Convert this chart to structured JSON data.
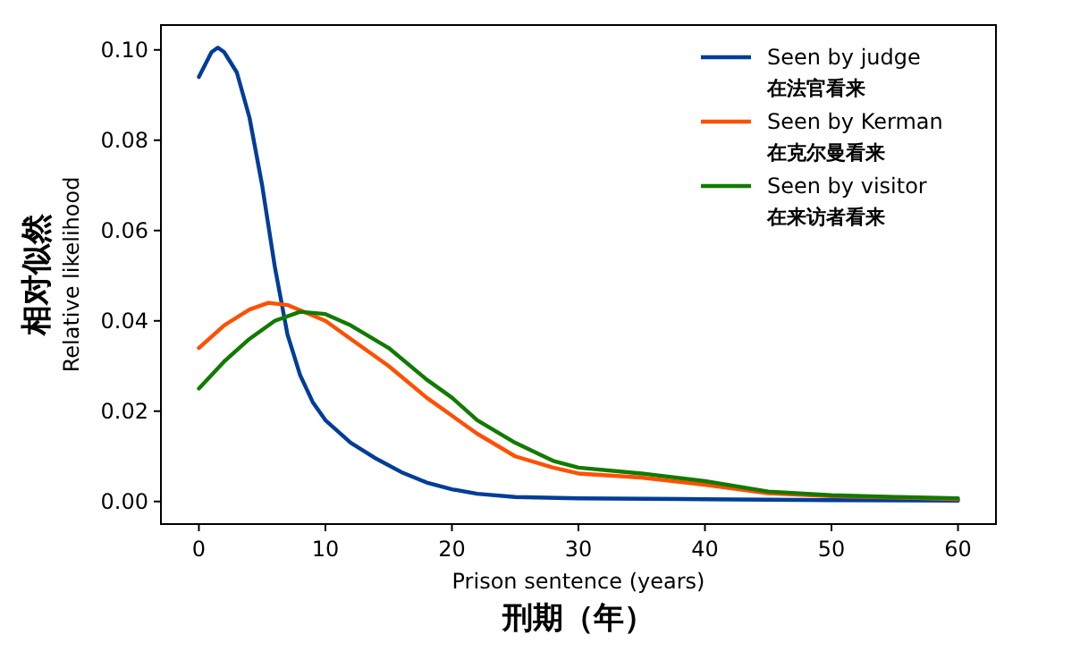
{
  "chart_data": {
    "type": "line",
    "xlabel": "Prison sentence (years)\n刑期（年）",
    "ylabel": "相对似然\nRelative likelihood",
    "xlim": [
      -3,
      63
    ],
    "ylim": [
      -0.005,
      0.1055
    ],
    "xticks": [
      0,
      10,
      20,
      30,
      40,
      50,
      60
    ],
    "yticks": [
      {
        "value": 0,
        "label": "0.00"
      },
      {
        "value": 0.02,
        "label": "0.02"
      },
      {
        "value": 0.04,
        "label": "0.04"
      },
      {
        "value": 0.06,
        "label": "0.06"
      },
      {
        "value": 0.08,
        "label": "0.08"
      },
      {
        "value": 0.1,
        "label": "0.10"
      }
    ],
    "grid": false,
    "legend": "top right",
    "marker": "none",
    "line_style": "solid",
    "series": [
      {
        "name": "Seen by judge\n在法官看来",
        "color": "#003d99",
        "x": [
          0,
          1,
          1.5,
          2,
          3,
          4,
          5,
          6,
          7,
          8,
          9,
          10,
          12,
          14,
          16,
          18,
          20,
          22,
          25,
          30,
          40,
          50,
          60
        ],
        "values": [
          0.094,
          0.0995,
          0.1005,
          0.0995,
          0.095,
          0.085,
          0.07,
          0.052,
          0.037,
          0.028,
          0.022,
          0.018,
          0.013,
          0.0095,
          0.0065,
          0.0042,
          0.0027,
          0.0017,
          0.001,
          0.0007,
          0.0005,
          0.0003,
          0.0002
        ]
      },
      {
        "name": "Seen by Kerman\n在克尔曼看来",
        "color": "#ff5000",
        "x": [
          0,
          2,
          4,
          5.5,
          7,
          10,
          12,
          15,
          18,
          20,
          22,
          25,
          28,
          30,
          35,
          40,
          45,
          50,
          55,
          60
        ],
        "values": [
          0.034,
          0.039,
          0.0425,
          0.044,
          0.0435,
          0.04,
          0.036,
          0.03,
          0.023,
          0.019,
          0.015,
          0.01,
          0.0075,
          0.0062,
          0.0053,
          0.0037,
          0.0018,
          0.0012,
          0.0009,
          0.0005
        ]
      },
      {
        "name": "Seen by visitor\n在来访者看来",
        "color": "#127a00",
        "x": [
          0,
          2,
          4,
          6,
          8,
          10,
          12,
          15,
          18,
          20,
          22,
          25,
          28,
          30,
          35,
          40,
          45,
          50,
          55,
          60
        ],
        "values": [
          0.025,
          0.031,
          0.036,
          0.04,
          0.042,
          0.0415,
          0.039,
          0.034,
          0.027,
          0.023,
          0.018,
          0.013,
          0.009,
          0.0075,
          0.0062,
          0.0045,
          0.0022,
          0.0014,
          0.001,
          0.0007
        ]
      }
    ]
  }
}
